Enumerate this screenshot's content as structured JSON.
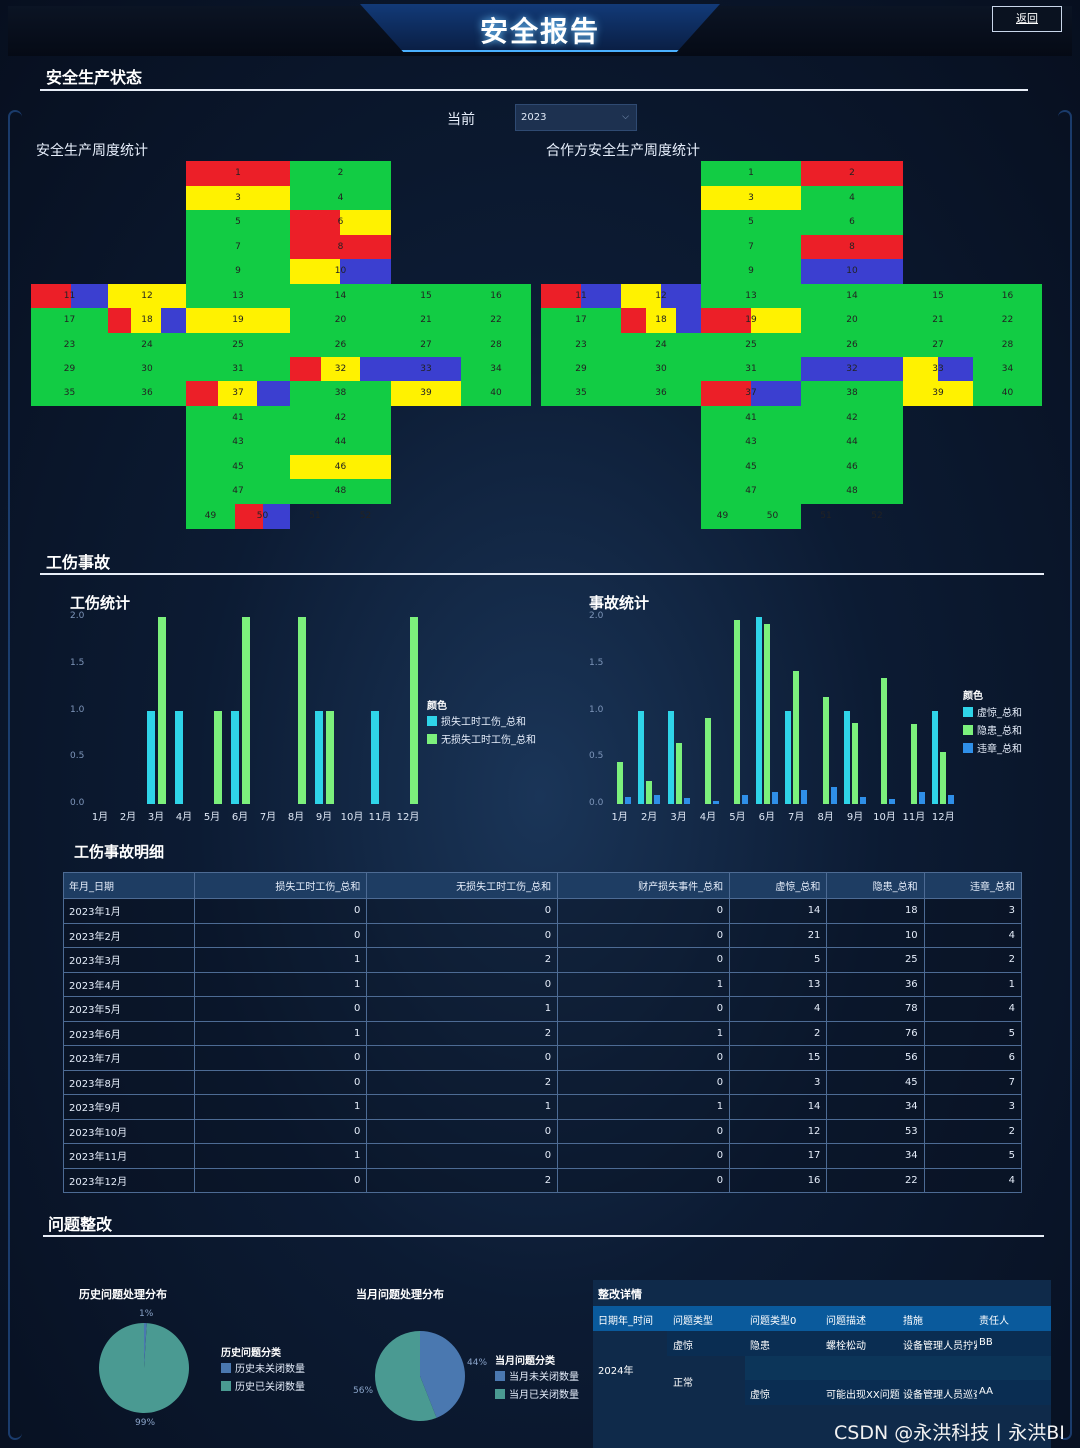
{
  "header": {
    "title": "安全报告",
    "back_label": "返回"
  },
  "sections": {
    "status": "安全生产状态",
    "injury": "工伤事故",
    "rectify": "问题整改"
  },
  "filter": {
    "label": "当前",
    "year": "2023"
  },
  "weekly": {
    "left_title": "安全生产周度统计",
    "right_title": "合作方安全生产周度统计"
  },
  "injury_chart": {
    "title": "工伤统计",
    "legend_title": "颜色",
    "series": [
      "损失工时工伤_总和",
      "无损失工时工伤_总和"
    ]
  },
  "accident_chart": {
    "title": "事故统计",
    "legend_title": "颜色",
    "series": [
      "虚惊_总和",
      "隐患_总和",
      "违章_总和"
    ]
  },
  "chart_data": [
    {
      "type": "bar",
      "title": "工伤统计",
      "categories": [
        "1月",
        "2月",
        "3月",
        "4月",
        "5月",
        "6月",
        "7月",
        "8月",
        "9月",
        "10月",
        "11月",
        "12月"
      ],
      "y_ticks": [
        "0.0",
        "0.5",
        "1.0",
        "1.5",
        "2.0"
      ],
      "ylim": [
        0,
        2
      ],
      "series": [
        {
          "name": "损失工时工伤_总和",
          "color": "#2fd4e8",
          "values": [
            0,
            0,
            1,
            1,
            0,
            1,
            0,
            0,
            1,
            0,
            1,
            0
          ]
        },
        {
          "name": "无损失工时工伤_总和",
          "color": "#7cf07c",
          "values": [
            0,
            0,
            2,
            0,
            1,
            2,
            0,
            2,
            1,
            0,
            0,
            2
          ]
        }
      ]
    },
    {
      "type": "bar",
      "title": "事故统计",
      "categories": [
        "1月",
        "2月",
        "3月",
        "4月",
        "5月",
        "6月",
        "7月",
        "8月",
        "9月",
        "10月",
        "11月",
        "12月"
      ],
      "y_ticks": [
        "0.0",
        "0.5",
        "1.0",
        "1.5",
        "2.0"
      ],
      "ylim": [
        0,
        2
      ],
      "series": [
        {
          "name": "虚惊_总和",
          "color": "#2fd4e8",
          "values": [
            0,
            1,
            1,
            0,
            0,
            2,
            1,
            0,
            1,
            0,
            0,
            1
          ]
        },
        {
          "name": "隐患_总和",
          "color": "#7cf07c",
          "values": [
            0.45,
            0.25,
            0.65,
            0.92,
            1.97,
            1.93,
            1.42,
            1.14,
            0.87,
            1.35,
            0.86,
            0.56
          ]
        },
        {
          "name": "违章_总和",
          "color": "#2f8fe8",
          "values": [
            0.08,
            0.1,
            0.06,
            0.03,
            0.1,
            0.13,
            0.15,
            0.18,
            0.08,
            0.05,
            0.13,
            0.1
          ]
        }
      ]
    },
    {
      "type": "pie",
      "title": "历史问题处理分布",
      "legend_title": "历史问题分类",
      "slices": [
        {
          "name": "历史未关闭数量",
          "value": 1,
          "label": "1%",
          "color": "#4a78b0"
        },
        {
          "name": "历史已关闭数量",
          "value": 99,
          "label": "99%",
          "color": "#4a9a92"
        }
      ]
    },
    {
      "type": "pie",
      "title": "当月问题处理分布",
      "legend_title": "当月问题分类",
      "slices": [
        {
          "name": "当月未关闭数量",
          "value": 44,
          "label": "44%",
          "color": "#4a78b0"
        },
        {
          "name": "当月已关闭数量",
          "value": 56,
          "label": "56%",
          "color": "#4a9a92"
        }
      ]
    }
  ],
  "detail_table": {
    "title": "工伤事故明细",
    "columns": [
      "年月_日期",
      "损失工时工伤_总和",
      "无损失工时工伤_总和",
      "财产损失事件_总和",
      "虚惊_总和",
      "隐患_总和",
      "违章_总和"
    ],
    "rows": [
      [
        "2023年1月",
        "0",
        "0",
        "0",
        "14",
        "18",
        "3"
      ],
      [
        "2023年2月",
        "0",
        "0",
        "0",
        "21",
        "10",
        "4"
      ],
      [
        "2023年3月",
        "1",
        "2",
        "0",
        "5",
        "25",
        "2"
      ],
      [
        "2023年4月",
        "1",
        "0",
        "1",
        "13",
        "36",
        "1"
      ],
      [
        "2023年5月",
        "0",
        "1",
        "0",
        "4",
        "78",
        "4"
      ],
      [
        "2023年6月",
        "1",
        "2",
        "1",
        "2",
        "76",
        "5"
      ],
      [
        "2023年7月",
        "0",
        "0",
        "0",
        "15",
        "56",
        "6"
      ],
      [
        "2023年8月",
        "0",
        "2",
        "0",
        "3",
        "45",
        "7"
      ],
      [
        "2023年9月",
        "1",
        "1",
        "1",
        "14",
        "34",
        "3"
      ],
      [
        "2023年10月",
        "0",
        "0",
        "0",
        "12",
        "53",
        "2"
      ],
      [
        "2023年11月",
        "1",
        "0",
        "0",
        "17",
        "34",
        "5"
      ],
      [
        "2023年12月",
        "0",
        "2",
        "0",
        "16",
        "22",
        "4"
      ]
    ]
  },
  "rectify_table": {
    "title": "整改详情",
    "columns": [
      "日期年_时间",
      "问题类型",
      "问题类型0",
      "问题描述",
      "措施",
      "责任人"
    ],
    "year": "2024年",
    "type_a": "虚惊",
    "type_b": "正常",
    "row1": {
      "type0": "隐患",
      "desc": "螺栓松动",
      "measure": "设备管理人员拧紧",
      "owner": "BB"
    },
    "row3": {
      "type0": "虚惊",
      "desc": "可能出现XX问题",
      "measure": "设备管理人员巡查",
      "owner": "AA"
    }
  },
  "watermark": "CSDN @永洪科技丨永洪BI"
}
